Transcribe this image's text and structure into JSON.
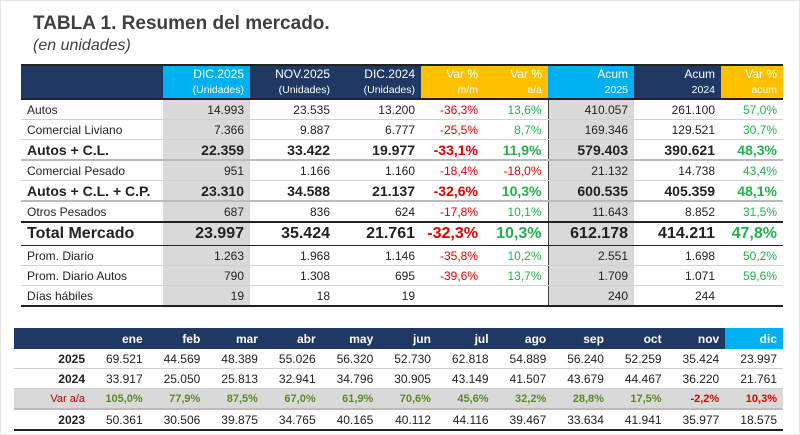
{
  "title": "TABLA 1. Resumen del mercado.",
  "subtitle": "(en unidades)",
  "summary": {
    "headers": [
      {
        "l1": "",
        "l2": "",
        "style": ""
      },
      {
        "l1": "DIC.2025",
        "l2": "(Unidades)",
        "style": "lb"
      },
      {
        "l1": "NOV.2025",
        "l2": "(Unidades)",
        "style": ""
      },
      {
        "l1": "DIC.2024",
        "l2": "(Unidades)",
        "style": ""
      },
      {
        "l1": "Var %",
        "l2": "m/m",
        "style": "yl"
      },
      {
        "l1": "Var %",
        "l2": "a/a",
        "style": "yl"
      },
      {
        "l1": "Acum",
        "l2": "2025",
        "style": "lb"
      },
      {
        "l1": "Acum",
        "l2": "2024",
        "style": ""
      },
      {
        "l1": "Var %",
        "l2": "acum",
        "style": "yl"
      }
    ],
    "rows": [
      {
        "type": "normal",
        "cells": [
          "Autos",
          "14.993",
          "23.535",
          "13.200",
          "-36,3%",
          "13,6%",
          "410.057",
          "261.100",
          "57,0%"
        ]
      },
      {
        "type": "normal",
        "cells": [
          "Comercial Liviano",
          "7.366",
          "9.887",
          "6.777",
          "-25,5%",
          "8,7%",
          "169.346",
          "129.521",
          "30,7%"
        ]
      },
      {
        "type": "bold",
        "cells": [
          "Autos + C.L.",
          "22.359",
          "33.422",
          "19.977",
          "-33,1%",
          "11,9%",
          "579.403",
          "390.621",
          "48,3%"
        ]
      },
      {
        "type": "normal",
        "cells": [
          "Comercial Pesado",
          "951",
          "1.166",
          "1.160",
          "-18,4%",
          "-18,0%",
          "21.132",
          "14.738",
          "43,4%"
        ]
      },
      {
        "type": "bold",
        "cells": [
          "Autos + C.L. + C.P.",
          "23.310",
          "34.588",
          "21.137",
          "-32,6%",
          "10,3%",
          "600.535",
          "405.359",
          "48,1%"
        ]
      },
      {
        "type": "normal",
        "cells": [
          "Otros Pesados",
          "687",
          "836",
          "624",
          "-17,8%",
          "10,1%",
          "11.643",
          "8.852",
          "31,5%"
        ]
      },
      {
        "type": "total",
        "cells": [
          "Total Mercado",
          "23.997",
          "35.424",
          "21.761",
          "-32,3%",
          "10,3%",
          "612.178",
          "414.211",
          "47,8%"
        ]
      },
      {
        "type": "normal",
        "cells": [
          "Prom. Diario",
          "1.263",
          "1.968",
          "1.146",
          "-35,8%",
          "10,2%",
          "2.551",
          "1.698",
          "50,2%"
        ]
      },
      {
        "type": "normal",
        "cells": [
          "Prom. Diario Autos",
          "790",
          "1.308",
          "695",
          "-39,6%",
          "13,7%",
          "1.709",
          "1.071",
          "59,6%"
        ]
      },
      {
        "type": "normal",
        "cells": [
          "Días hábiles",
          "19",
          "18",
          "19",
          "",
          "",
          "240",
          "244",
          ""
        ]
      }
    ]
  },
  "monthly": {
    "months": [
      "ene",
      "feb",
      "mar",
      "abr",
      "may",
      "jun",
      "jul",
      "ago",
      "sep",
      "oct",
      "nov",
      "dic"
    ],
    "rows": [
      {
        "label": "2025",
        "type": "year",
        "values": [
          "69.521",
          "44.569",
          "48.389",
          "55.026",
          "56.320",
          "52.730",
          "62.818",
          "54.889",
          "56.240",
          "52.259",
          "35.424",
          "23.997"
        ]
      },
      {
        "label": "2024",
        "type": "year",
        "values": [
          "33.917",
          "25.050",
          "25.813",
          "32.941",
          "34.796",
          "30.905",
          "43.149",
          "41.507",
          "43.679",
          "44.467",
          "36.220",
          "21.761"
        ]
      },
      {
        "label": "Var a/a",
        "type": "var",
        "values": [
          "105,0%",
          "77,9%",
          "87,5%",
          "67,0%",
          "61,9%",
          "70,6%",
          "45,6%",
          "32,2%",
          "28,8%",
          "17,5%",
          "-2,2%",
          "10,3%"
        ],
        "red_cols": [
          10,
          11
        ]
      },
      {
        "label": "2023",
        "type": "year",
        "values": [
          "50.361",
          "30.506",
          "39.875",
          "34.765",
          "40.165",
          "40.112",
          "44.116",
          "39.467",
          "33.634",
          "41.941",
          "35.977",
          "18.575"
        ]
      }
    ]
  },
  "colors": {
    "navy": "#1f3864",
    "light_blue": "#00b0f0",
    "yellow": "#ffc000",
    "negative": "#e00000",
    "positive": "#22b14c"
  }
}
